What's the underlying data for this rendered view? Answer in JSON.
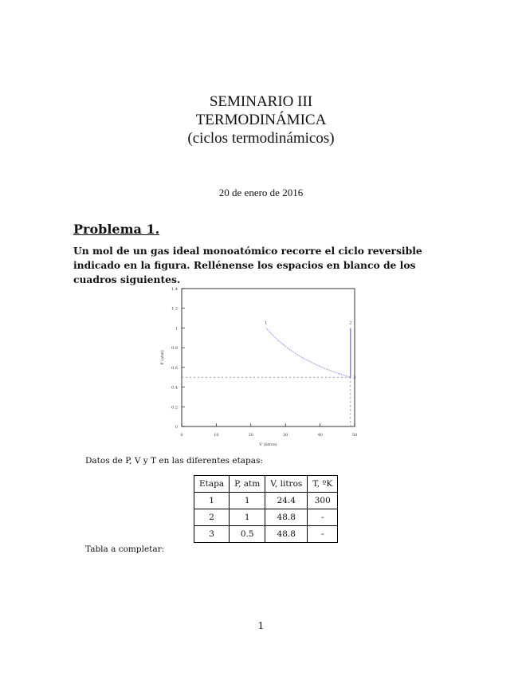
{
  "header": {
    "title_lines": [
      "SEMINARIO III",
      "TERMODINÁMICA",
      "(ciclos termodinámicos)"
    ],
    "date": "20 de enero de 2016"
  },
  "problem": {
    "heading": "Problema 1.",
    "statement": "Un mol de un gas ideal monoatómico recorre el ciclo reversible indicado en la figura. Rellénense los espacios en blanco de los cuadros siguientes."
  },
  "chart_data": {
    "type": "line",
    "xlabel": "V (litros)",
    "ylabel": "P (atm)",
    "xlim": [
      0,
      50
    ],
    "ylim": [
      0,
      1.4
    ],
    "xticks": [
      "0",
      "10",
      "20",
      "30",
      "40",
      "50"
    ],
    "yticks": [
      "0",
      "0.2",
      "0.4",
      "0.6",
      "0.8",
      "1",
      "1.2",
      "1.4"
    ],
    "points": [
      {
        "label": "1",
        "x": 24.4,
        "y": 1
      },
      {
        "label": "2",
        "x": 48.8,
        "y": 1
      },
      {
        "label": "3",
        "x": 48.8,
        "y": 0.5
      }
    ],
    "series": [
      {
        "style": "dotted curve (isotherm)",
        "from": "1",
        "to": "3"
      },
      {
        "style": "solid",
        "from": "2",
        "to": "3"
      }
    ],
    "guides": {
      "p": 0.5,
      "v": 48.8
    },
    "color": "#6666ee"
  },
  "table1": {
    "caption": "Datos de P, V y T en las diferentes etapas:",
    "headers": [
      "Etapa",
      "P, atm",
      "V, litros",
      "T, ºK"
    ],
    "rows": [
      [
        "1",
        "1",
        "24.4",
        "300"
      ],
      [
        "2",
        "1",
        "48.8",
        "-"
      ],
      [
        "3",
        "0.5",
        "48.8",
        "-"
      ]
    ]
  },
  "table2": {
    "caption": "Tabla a completar:"
  },
  "footer": {
    "page_number": "1"
  }
}
